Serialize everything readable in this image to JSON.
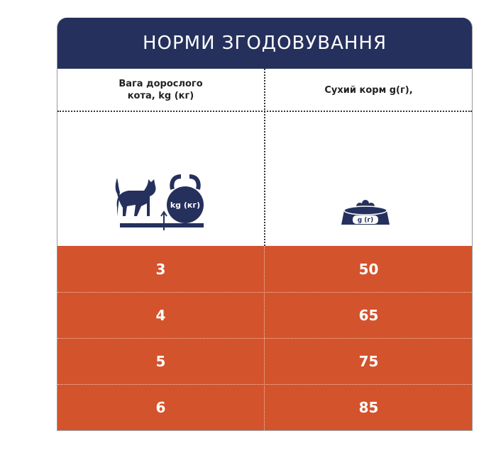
{
  "header": {
    "title": "НОРМИ ЗГОДОВУВАННЯ"
  },
  "table": {
    "columns": [
      [
        "Вага дорослого",
        "кота, kg (кг)"
      ],
      [
        "Сухий корм g(г),"
      ]
    ],
    "icons": [
      "kg (кг)",
      "g (г)"
    ],
    "rows": [
      [
        3,
        50
      ],
      [
        4,
        65
      ],
      [
        5,
        75
      ],
      [
        6,
        85
      ]
    ]
  }
}
